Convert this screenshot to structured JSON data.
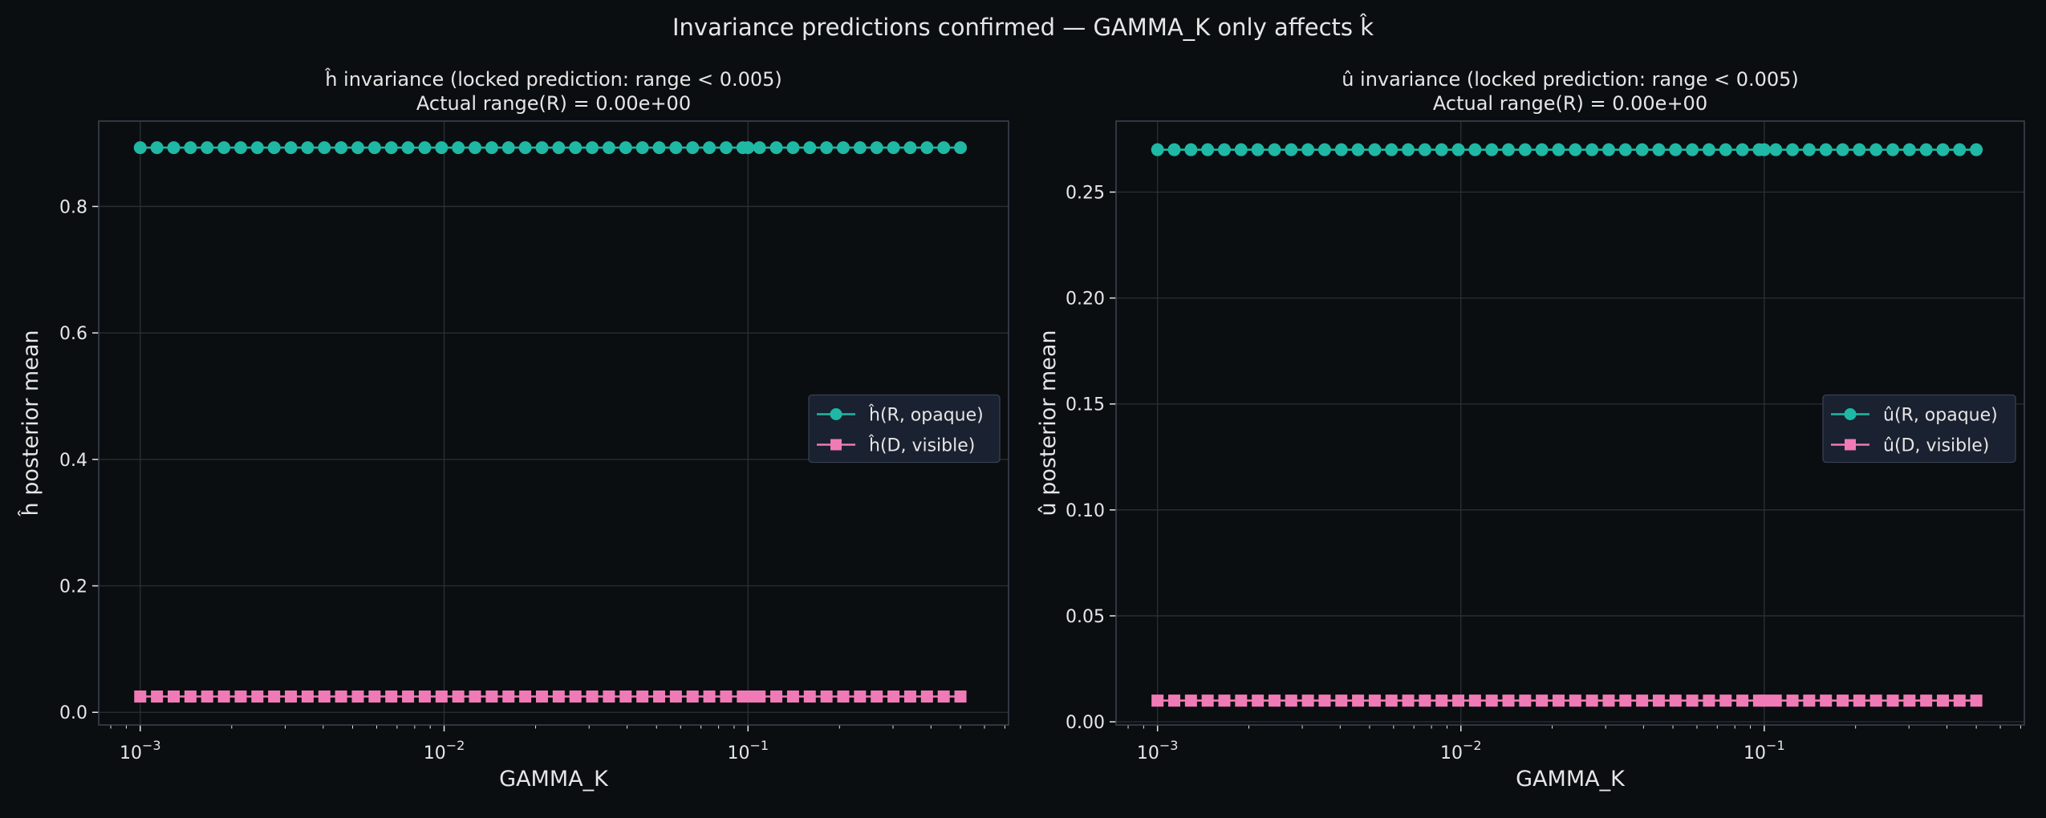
{
  "figure": {
    "suptitle": "Invariance predictions confirmed — GAMMA_K only affects k̂",
    "colors": {
      "background": "#0b0e10",
      "axes_face": "#0b0e10",
      "axes_edge": "#3a4250",
      "grid": "#2a3038",
      "text": "#e6e6e6",
      "series_r": "#1fb8a5",
      "series_d": "#f07ab6",
      "legend_bg": "#1b2332",
      "legend_edge": "#3a4454"
    }
  },
  "chart_data": [
    {
      "type": "line",
      "title_line1": "ĥ invariance (locked prediction: range < 0.005)",
      "title_line2": "Actual range(R) = 0.00e+00",
      "xlabel": "GAMMA_K",
      "ylabel": "ĥ posterior mean",
      "xscale": "log",
      "xlim": [
        0.00073,
        0.72
      ],
      "ylim": [
        -0.02,
        0.935
      ],
      "xticks": [
        0.001,
        0.01,
        0.1
      ],
      "xtick_labels": [
        "10",
        "10",
        "10"
      ],
      "xtick_exponents": [
        "−3",
        "−2",
        "−1"
      ],
      "yticks": [
        0.0,
        0.2,
        0.4,
        0.6,
        0.8
      ],
      "ytick_labels": [
        "0.0",
        "0.2",
        "0.4",
        "0.6",
        "0.8"
      ],
      "grid": true,
      "legend_position": "center-right",
      "x": {
        "log10_start": -3.0,
        "log10_end": -0.301,
        "count": 50,
        "extra_points": [
          0.1
        ]
      },
      "series": [
        {
          "name": "ĥ(R, opaque)",
          "marker": "circle",
          "color_key": "series_r",
          "constant_value": 0.893
        },
        {
          "name": "ĥ(D, visible)",
          "marker": "square",
          "color_key": "series_d",
          "constant_value": 0.025
        }
      ]
    },
    {
      "type": "line",
      "title_line1": "û invariance (locked prediction: range < 0.005)",
      "title_line2": "Actual range(R) = 0.00e+00",
      "xlabel": "GAMMA_K",
      "ylabel": "û posterior mean",
      "xscale": "log",
      "xlim": [
        0.00073,
        0.72
      ],
      "ylim": [
        -0.0015,
        0.2835
      ],
      "xticks": [
        0.001,
        0.01,
        0.1
      ],
      "xtick_labels": [
        "10",
        "10",
        "10"
      ],
      "xtick_exponents": [
        "−3",
        "−2",
        "−1"
      ],
      "yticks": [
        0.0,
        0.05,
        0.1,
        0.15,
        0.2,
        0.25
      ],
      "ytick_labels": [
        "0.00",
        "0.05",
        "0.10",
        "0.15",
        "0.20",
        "0.25"
      ],
      "grid": true,
      "legend_position": "center-right",
      "x": {
        "log10_start": -3.0,
        "log10_end": -0.301,
        "count": 50,
        "extra_points": [
          0.1
        ]
      },
      "series": [
        {
          "name": "û(R, opaque)",
          "marker": "circle",
          "color_key": "series_r",
          "constant_value": 0.27
        },
        {
          "name": "û(D, visible)",
          "marker": "square",
          "color_key": "series_d",
          "constant_value": 0.01
        }
      ]
    }
  ]
}
